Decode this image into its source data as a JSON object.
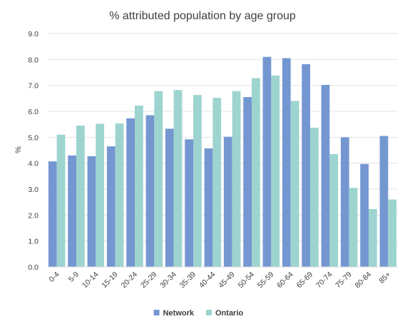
{
  "chart_data": {
    "type": "bar",
    "title": "% attributed population by age group",
    "xlabel": "",
    "ylabel": "%",
    "ylim": [
      0,
      9
    ],
    "yticks": [
      "0.0",
      "1.0",
      "2.0",
      "3.0",
      "4.0",
      "5.0",
      "6.0",
      "7.0",
      "8.0",
      "9.0"
    ],
    "grid": true,
    "legend_position": "bottom",
    "categories": [
      "0-4",
      "5-9",
      "10-14",
      "15-19",
      "20-24",
      "25-29",
      "30-34",
      "35-39",
      "40-44",
      "45-49",
      "50-54",
      "55-59",
      "60-64",
      "65-69",
      "70-74",
      "75-79",
      "80-84",
      "85+"
    ],
    "series": [
      {
        "name": "Network",
        "color": "#7597d1",
        "values": [
          4.07,
          4.3,
          4.27,
          4.65,
          5.73,
          5.85,
          5.33,
          4.92,
          4.57,
          5.02,
          6.55,
          8.1,
          8.05,
          7.82,
          7.02,
          5.0,
          3.97,
          5.05
        ]
      },
      {
        "name": "Ontario",
        "color": "#9dd4cf",
        "values": [
          5.1,
          5.45,
          5.52,
          5.53,
          6.22,
          6.78,
          6.82,
          6.63,
          6.52,
          6.78,
          7.28,
          7.38,
          6.4,
          5.37,
          4.35,
          3.05,
          2.23,
          2.6
        ]
      }
    ]
  }
}
